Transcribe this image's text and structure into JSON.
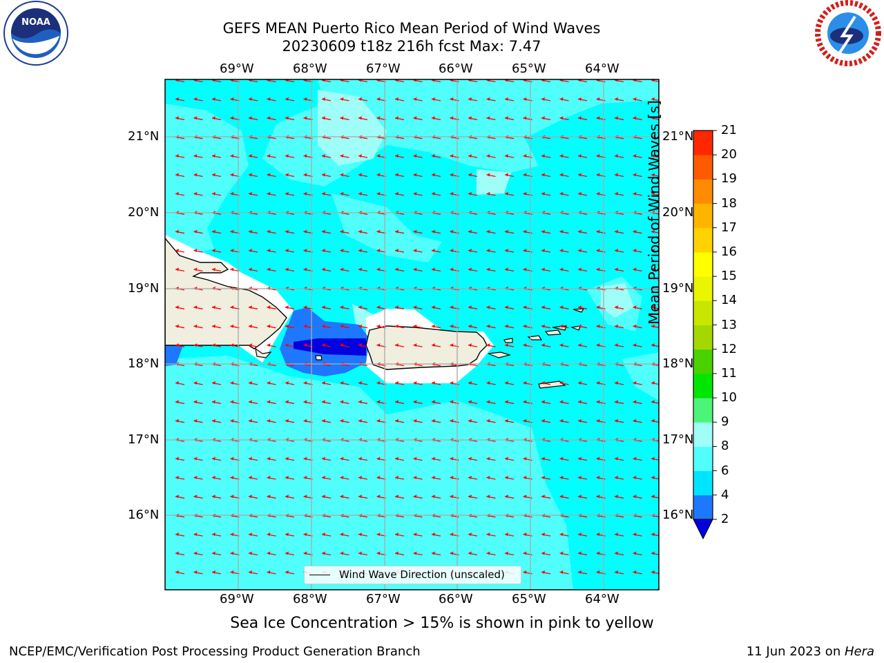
{
  "title_line1": "GEFS MEAN Puerto Rico Mean Period of Wind Waves",
  "title_line2": "20230609 t18z 216h fcst   Max: 7.47",
  "lon_labels": [
    "69°W",
    "68°W",
    "67°W",
    "66°W",
    "65°W",
    "64°W"
  ],
  "lat_labels": [
    "21°N",
    "20°N",
    "19°N",
    "18°N",
    "17°N",
    "16°N"
  ],
  "legend_label": "Wind Wave Direction (unscaled)",
  "colorbar": {
    "title": "Mean Period of Wind Waves [s]",
    "ticks": [
      "21",
      "20",
      "19",
      "18",
      "17",
      "16",
      "15",
      "14",
      "13",
      "12",
      "11",
      "10",
      "9",
      "8",
      "6",
      "4",
      "2"
    ],
    "colors": [
      "#0000e0",
      "#1e78ff",
      "#00e5ff",
      "#50fffb",
      "#9ffff8",
      "#4cf57a",
      "#00e600",
      "#4ad200",
      "#a5d700",
      "#c8e600",
      "#eaf500",
      "#ffff00",
      "#ffd200",
      "#ffb400",
      "#ff8c00",
      "#ff5a00",
      "#ff2800",
      "#ff0000"
    ]
  },
  "ice_note": "Sea Ice Concentration > 15% is shown in pink to yellow",
  "footer_left": "NCEP/EMC/Verification Post Processing Product Generation Branch",
  "footer_date": "11 Jun 2023 on ",
  "footer_machine": "Hera",
  "logos": {
    "left": "NOAA",
    "right": "NATIONAL WEATHER SERVICE"
  },
  "map": {
    "lon_range": [
      -70.0,
      -63.25
    ],
    "lat_range": [
      15.0,
      21.75
    ],
    "background_color": "#00ffff",
    "land_color": "#efeedf",
    "arrow_color": "#ff0000"
  },
  "chart_data": {
    "type": "heatmap",
    "title": "GEFS MEAN Puerto Rico Mean Period of Wind Waves",
    "subtitle": "20230609 t18z 216h fcst   Max: 7.47",
    "variable": "Mean Period of Wind Waves [s]",
    "max": 7.47,
    "levels": [
      2,
      4,
      6,
      8,
      9,
      10,
      11,
      12,
      13,
      14,
      15,
      16,
      17,
      18,
      19,
      20,
      21
    ],
    "lon_range": [
      -70.0,
      -63.25
    ],
    "lat_range": [
      15.0,
      21.75
    ],
    "dominant_band": "4-6",
    "legend": "Wind Wave Direction (unscaled)"
  }
}
